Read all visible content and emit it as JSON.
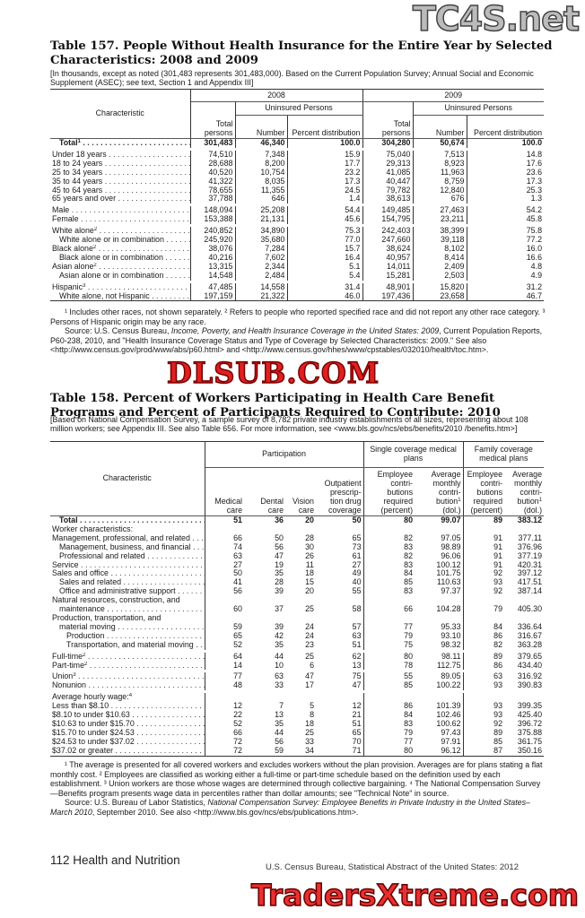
{
  "watermarks": {
    "top": "TC4S.net",
    "middle": "DLSUB.COM",
    "bottom": "TradersXtreme.com"
  },
  "t157": {
    "title": "Table 157. People Without Health Insurance for the Entire Year by Selected Characteristics: 2008 and 2009",
    "headnote": "[In thousands, except as noted (301,483 represents 301,483,000). Based on the Current Population Survey; Annual Social and Economic Supplement (ASEC); see text, Section 1 and Appendix III]",
    "h": {
      "char": "Characteristic",
      "y1": "2008",
      "y2": "2009",
      "unins": "Uninsured Persons",
      "total": "Total persons",
      "number": "Number",
      "pct": "Percent distribution"
    },
    "rows": [
      {
        "l": "Total",
        "s": "1",
        "bold": true,
        "v": [
          "301,483",
          "46,340",
          "100.0",
          "304,280",
          "50,674",
          "100.0"
        ]
      },
      {
        "gap": true
      },
      {
        "l": "Under 18 years",
        "v": [
          "74,510",
          "7,348",
          "15.9",
          "75,040",
          "7,513",
          "14.8"
        ]
      },
      {
        "l": "18 to 24 years",
        "v": [
          "28,688",
          "8,200",
          "17.7",
          "29,313",
          "8,923",
          "17.6"
        ]
      },
      {
        "l": "25 to 34 years",
        "v": [
          "40,520",
          "10,754",
          "23.2",
          "41,085",
          "11,963",
          "23.6"
        ]
      },
      {
        "l": "35 to 44 years",
        "v": [
          "41,322",
          "8,035",
          "17.3",
          "40,447",
          "8,759",
          "17.3"
        ]
      },
      {
        "l": "45 to 64 years",
        "v": [
          "78,655",
          "11,355",
          "24.5",
          "79,782",
          "12,840",
          "25.3"
        ]
      },
      {
        "l": "65 years and over",
        "v": [
          "37,788",
          "646",
          "1.4",
          "38,613",
          "676",
          "1.3"
        ]
      },
      {
        "gap": true
      },
      {
        "l": "Male",
        "v": [
          "148,094",
          "25,208",
          "54.4",
          "149,485",
          "27,463",
          "54.2"
        ]
      },
      {
        "l": "Female",
        "v": [
          "153,388",
          "21,131",
          "45.6",
          "154,795",
          "23,211",
          "45.8"
        ]
      },
      {
        "gap": true
      },
      {
        "l": "White alone",
        "s": "2",
        "v": [
          "240,852",
          "34,890",
          "75.3",
          "242,403",
          "38,399",
          "75.8"
        ]
      },
      {
        "l": "White alone or in combination",
        "i": 1,
        "v": [
          "245,920",
          "35,680",
          "77.0",
          "247,660",
          "39,118",
          "77.2"
        ]
      },
      {
        "l": "Black alone",
        "s": "2",
        "v": [
          "38,076",
          "7,284",
          "15.7",
          "38,624",
          "8,102",
          "16.0"
        ]
      },
      {
        "l": "Black alone or in combination",
        "i": 1,
        "v": [
          "40,216",
          "7,602",
          "16.4",
          "40,957",
          "8,414",
          "16.6"
        ]
      },
      {
        "l": "Asian alone",
        "s": "2",
        "v": [
          "13,315",
          "2,344",
          "5.1",
          "14,011",
          "2,409",
          "4.8"
        ]
      },
      {
        "l": "Asian alone or in combination",
        "i": 1,
        "v": [
          "14,548",
          "2,484",
          "5.4",
          "15,281",
          "2,503",
          "4.9"
        ]
      },
      {
        "gap": true
      },
      {
        "l": "Hispanic",
        "s": "3",
        "v": [
          "47,485",
          "14,558",
          "31.4",
          "48,901",
          "15,820",
          "31.2"
        ]
      },
      {
        "l": "White alone, not Hispanic",
        "i": 1,
        "v": [
          "197,159",
          "21,322",
          "46.0",
          "197,436",
          "23,658",
          "46.7"
        ]
      }
    ],
    "footnotes": "¹ Includes other races, not shown separately. ² Refers to people who reported specified race and did not report any other race category. ³ Persons of Hispanic origin may be any race.",
    "source_prefix": "Source: U.S. Census Bureau, ",
    "source_title": "Income, Poverty, and Health Insurance Coverage in the United States: 2009",
    "source_rest": ", Current Population Reports, P60-238, 2010, and \"Health Insurance Coverage Status and Type of Coverage by Selected Characteristics: 2009.\" See also <http://www.census.gov/prod/www/abs/p60.html> and <http://www.census.gov/hhes/www/cpstables/032010/health/toc.htm>."
  },
  "t158": {
    "title": "Table 158. Percent of Workers Participating in Health Care Benefit Programs and Percent of Participants Required to Contribute: 2010",
    "headnote": "[Based on National Compensation Survey, a sample survey of 8,782 private industry establishments of all sizes, representing about 108 million workers; see Appendix III. See also Table 656. For more information, see <www.bls.gov/ncs/ebs/benefits/2010 /benefits.htm>]",
    "h": {
      "char": "Characteristic",
      "participation": "Participation",
      "single": "Single coverage medical plans",
      "family": "Family coverage medical plans",
      "medical": "Medical care",
      "dental": "Dental care",
      "vision": "Vision care",
      "drug": "Outpatient prescrip- tion drug coverage",
      "contrib": "Employee contri- butions required (percent)",
      "avg": "Average monthly contri- bution",
      "avg_unit": "(dol.)",
      "fcontrib": "Employee contri- butions required (percent)",
      "favg": "Average monthly contri- bution",
      "favg_unit": "(dol.)"
    },
    "rows": [
      {
        "l": "Total",
        "bold": true,
        "v": [
          "51",
          "36",
          "20",
          "50",
          "80",
          "99.07",
          "89",
          "383.12"
        ]
      },
      {
        "l": "Worker characteristics:",
        "v": []
      },
      {
        "l": "Management, professional, and related",
        "v": [
          "66",
          "50",
          "28",
          "65",
          "82",
          "97.05",
          "91",
          "377.11"
        ]
      },
      {
        "l": "Management, business, and financial",
        "i": 1,
        "v": [
          "74",
          "56",
          "30",
          "73",
          "83",
          "98.89",
          "91",
          "376.96"
        ]
      },
      {
        "l": "Professional and related",
        "i": 1,
        "v": [
          "63",
          "47",
          "26",
          "61",
          "82",
          "96.06",
          "91",
          "377.19"
        ]
      },
      {
        "l": "Service",
        "v": [
          "27",
          "19",
          "11",
          "27",
          "83",
          "100.12",
          "91",
          "420.31"
        ]
      },
      {
        "l": "Sales and office",
        "v": [
          "50",
          "35",
          "18",
          "49",
          "84",
          "101.75",
          "92",
          "397.12"
        ]
      },
      {
        "l": "Sales and related",
        "i": 1,
        "v": [
          "41",
          "28",
          "15",
          "40",
          "85",
          "110.63",
          "93",
          "417.51"
        ]
      },
      {
        "l": "Office and administrative support",
        "i": 1,
        "v": [
          "56",
          "39",
          "20",
          "55",
          "83",
          "97.37",
          "92",
          "387.14"
        ]
      },
      {
        "l": "Natural resources, construction, and",
        "nodots": true,
        "v": []
      },
      {
        "l": "maintenance",
        "i": 1,
        "v": [
          "60",
          "37",
          "25",
          "58",
          "66",
          "104.28",
          "79",
          "405.30"
        ]
      },
      {
        "l": "Production, transportation, and",
        "nodots": true,
        "v": []
      },
      {
        "l": "material moving",
        "i": 1,
        "v": [
          "59",
          "39",
          "24",
          "57",
          "77",
          "95.33",
          "84",
          "336.64"
        ]
      },
      {
        "l": "Production",
        "i": 2,
        "v": [
          "65",
          "42",
          "24",
          "63",
          "79",
          "93.10",
          "86",
          "316.67"
        ]
      },
      {
        "l": "Transportation, and material moving",
        "i": 2,
        "v": [
          "52",
          "35",
          "23",
          "51",
          "75",
          "98.32",
          "82",
          "363.28"
        ]
      },
      {
        "gap": true
      },
      {
        "l": "Full-time",
        "s": "2",
        "v": [
          "64",
          "44",
          "25",
          "62",
          "80",
          "98.11",
          "89",
          "379.65"
        ]
      },
      {
        "l": "Part-time",
        "s": "2",
        "v": [
          "14",
          "10",
          "6",
          "13",
          "78",
          "112.75",
          "86",
          "434.40"
        ]
      },
      {
        "gap": true
      },
      {
        "l": "Union",
        "s": "3",
        "v": [
          "77",
          "63",
          "47",
          "75",
          "55",
          "89.05",
          "63",
          "316.92"
        ]
      },
      {
        "l": "Nonunion",
        "v": [
          "48",
          "33",
          "17",
          "47",
          "85",
          "100.22",
          "93",
          "390.83"
        ]
      },
      {
        "gap": true
      },
      {
        "l": "Average hourly wage:",
        "s": "4",
        "nodots": true,
        "v": []
      },
      {
        "l": "Less than $8.10",
        "v": [
          "12",
          "7",
          "5",
          "12",
          "86",
          "101.39",
          "93",
          "399.35"
        ]
      },
      {
        "l": "$8.10 to under $10.63",
        "v": [
          "22",
          "13",
          "8",
          "21",
          "84",
          "102.46",
          "93",
          "425.40"
        ]
      },
      {
        "l": "$10.63 to under $15.70",
        "v": [
          "52",
          "35",
          "18",
          "51",
          "83",
          "100.62",
          "92",
          "396.72"
        ]
      },
      {
        "l": "$15.70 to under $24.53",
        "v": [
          "66",
          "44",
          "25",
          "65",
          "79",
          "97.43",
          "89",
          "375.88"
        ]
      },
      {
        "l": "$24.53 to under $37.02",
        "v": [
          "72",
          "56",
          "33",
          "70",
          "77",
          "97.91",
          "85",
          "361.75"
        ]
      },
      {
        "l": "$37.02 or greater",
        "v": [
          "72",
          "59",
          "34",
          "71",
          "80",
          "96.12",
          "87",
          "350.16"
        ]
      }
    ],
    "footnotes": "¹ The average is presented for all covered workers and excludes workers without the plan provision. Averages are for plans stating a flat monthly cost. ² Employees are classified as working either a full-time or part-time schedule based on the definition used by each establishment. ³ Union workers are those whose wages are determined through collective bargaining. ⁴ The National Compensation Survey—Benefits program presents wage data in percentiles rather than dollar amounts; see \"Technical Note\" in source.",
    "source_prefix": "Source: U.S. Bureau of Labor Statistics, ",
    "source_title": "National Compensation Survey: Employee Benefits in Private Industry in the United States–March 2010",
    "source_rest": ", September 2010. See also <http://www.bls.gov/ncs/ebs/publications.htm>."
  },
  "footer": {
    "page": "112  Health and Nutrition",
    "right": "U.S. Census Bureau, Statistical Abstract of the United States: 2012"
  }
}
